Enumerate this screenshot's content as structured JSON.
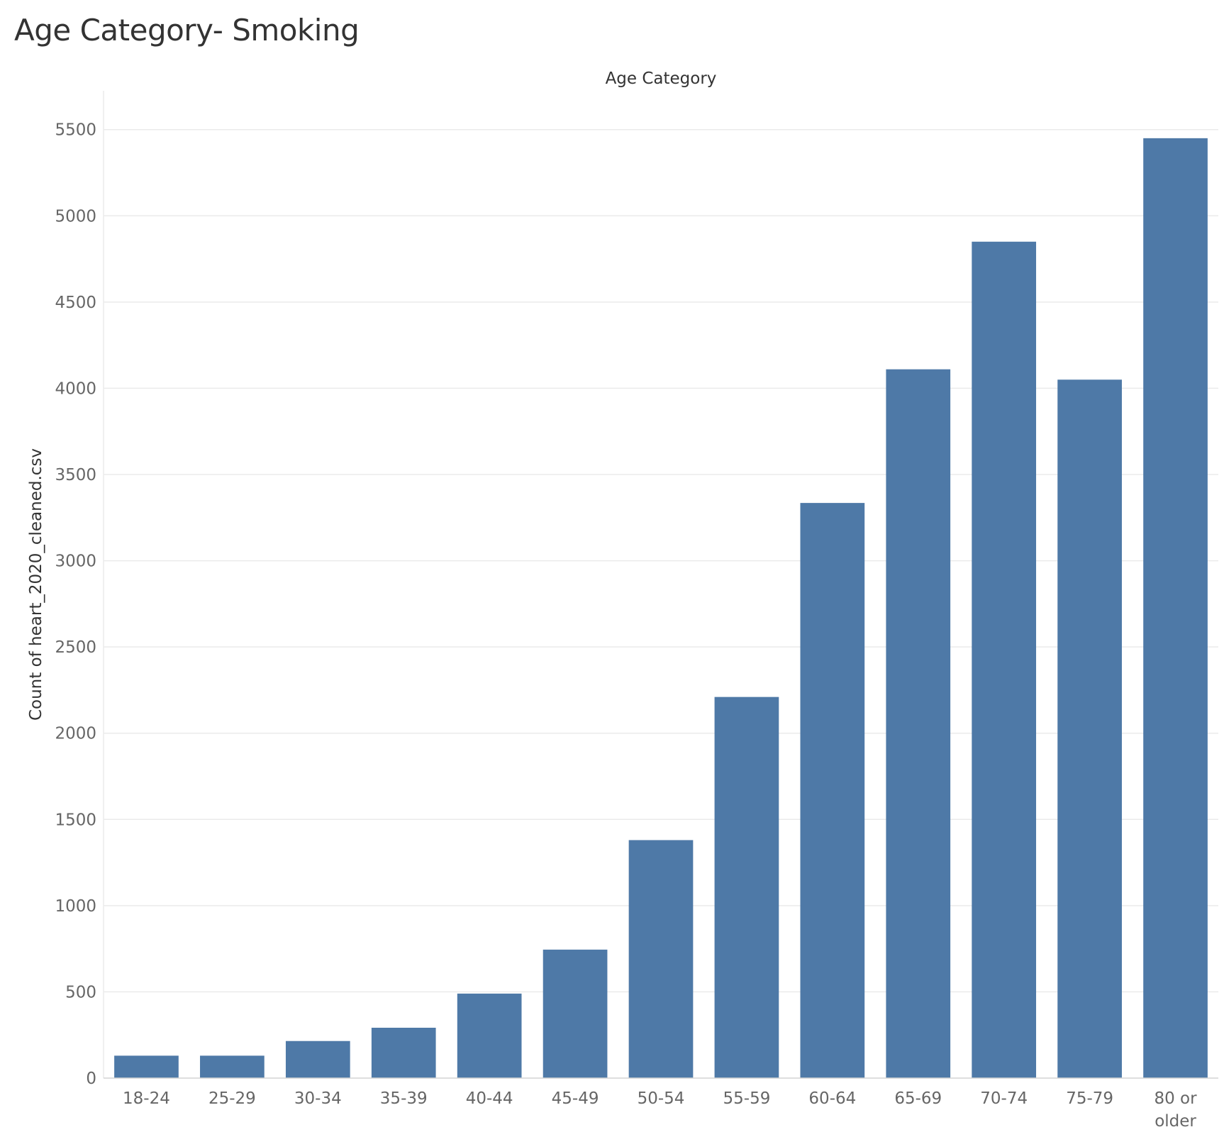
{
  "chart_data": {
    "type": "bar",
    "title": "Age Category- Smoking",
    "column_header": "Age Category",
    "ylabel": "Count of heart_2020_cleaned.csv",
    "categories": [
      "18-24",
      "25-29",
      "30-34",
      "35-39",
      "40-44",
      "45-49",
      "50-54",
      "55-59",
      "60-64",
      "65-69",
      "70-74",
      "75-79",
      "80 or older"
    ],
    "values": [
      130,
      130,
      215,
      292,
      490,
      745,
      1380,
      2210,
      3335,
      4110,
      4850,
      4050,
      5450
    ],
    "yticks": [
      0,
      500,
      1000,
      1500,
      2000,
      2500,
      3000,
      3500,
      4000,
      4500,
      5000,
      5500
    ],
    "ylim": [
      0,
      5725
    ],
    "grid": true,
    "colors": {
      "bar": "#4e79a7",
      "gridline": "#ebebeb",
      "axis_line": "#d4d4d4",
      "tick_label": "#666666",
      "axis_title": "#333333"
    }
  }
}
